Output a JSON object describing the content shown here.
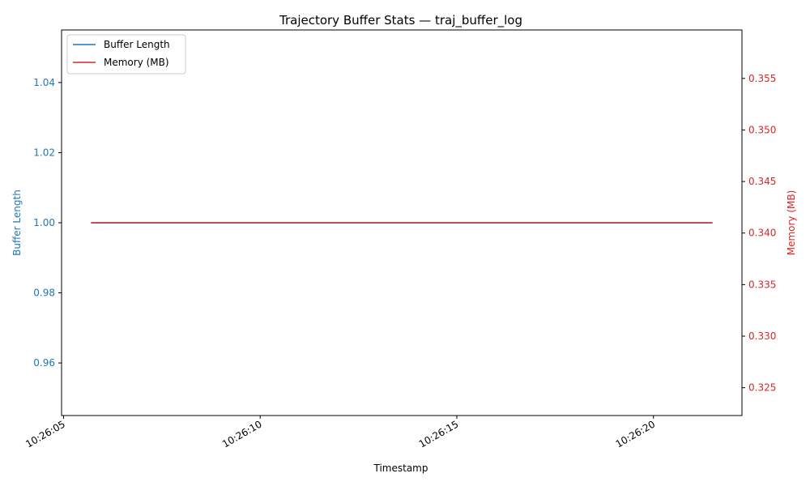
{
  "chart_data": {
    "type": "line",
    "title": "Trajectory Buffer Stats — traj_buffer_log",
    "xlabel": "Timestamp",
    "ylabel_left": "Buffer Length",
    "ylabel_right": "Memory (MB)",
    "x_ticks": [
      "10:26:05",
      "10:26:10",
      "10:26:15",
      "10:26:20"
    ],
    "x_tick_seconds": [
      5,
      10,
      15,
      20
    ],
    "xlim_seconds": [
      4.95,
      22.25
    ],
    "y_left_ticks": [
      "0.96",
      "0.98",
      "1.00",
      "1.02",
      "1.04"
    ],
    "y_left_tick_values": [
      0.96,
      0.98,
      1.0,
      1.02,
      1.04
    ],
    "ylim_left": [
      0.945,
      1.055
    ],
    "y_right_ticks": [
      "0.325",
      "0.330",
      "0.335",
      "0.340",
      "0.345",
      "0.350",
      "0.355"
    ],
    "y_right_tick_values": [
      0.325,
      0.33,
      0.335,
      0.34,
      0.345,
      0.35,
      0.355
    ],
    "ylim_right": [
      0.3223,
      0.3597
    ],
    "legend_position": "upper-left",
    "series": [
      {
        "name": "Buffer Length",
        "axis": "left",
        "color": "#1f77b4",
        "x_seconds": [
          5.7,
          21.5
        ],
        "values": [
          1.0,
          1.0
        ]
      },
      {
        "name": "Memory (MB)",
        "axis": "right",
        "color": "#d62728",
        "x_seconds": [
          5.7,
          21.5
        ],
        "values": [
          0.341,
          0.341
        ]
      }
    ],
    "left_axis_color": "#1f77b4",
    "right_axis_color": "#d62728"
  }
}
